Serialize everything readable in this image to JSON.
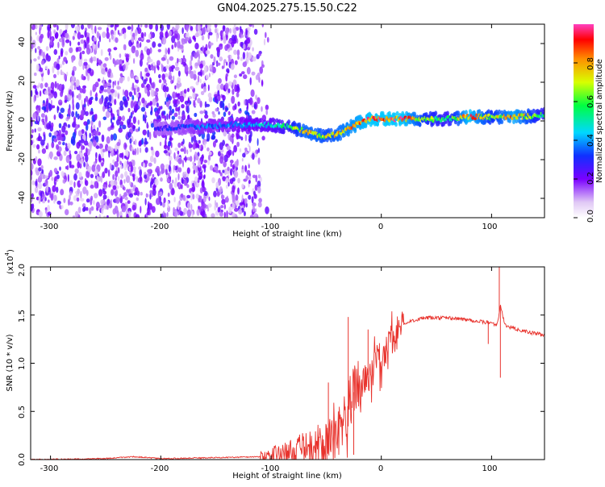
{
  "title": "GN04.2025.275.15.50.C22",
  "top_panel": {
    "ylabel": "Frequency (Hz)",
    "xlabel": "Height of straight line (km)",
    "colorbar_label": "Normalized spectral amplitude",
    "xticks": [
      "-300",
      "-200",
      "-100",
      "0",
      "100"
    ],
    "yticks": [
      "-40",
      "-20",
      "0",
      "20",
      "40"
    ],
    "cticks": [
      "0.0",
      "0.2",
      "0.4",
      "0.6",
      "0.8"
    ]
  },
  "bottom_panel": {
    "ylabel": "SNR (10 * v/v)",
    "xlabel": "Height of straight line (km)",
    "multiplier_base": "(x10",
    "multiplier_exp": "4",
    "multiplier_close": ")",
    "xticks": [
      "-300",
      "-200",
      "-100",
      "0",
      "100"
    ],
    "yticks": [
      "0.0",
      "0.5",
      "1.0",
      "1.5",
      "2.0"
    ]
  },
  "chart_data": [
    {
      "type": "heatmap",
      "title": "GN04.2025.275.15.50.C22",
      "xlabel": "Height of straight line (km)",
      "ylabel": "Frequency (Hz)",
      "xlim": [
        -318,
        148
      ],
      "ylim": [
        -50,
        50
      ],
      "clim": [
        0,
        1
      ],
      "colorbar_label": "Normalized spectral amplitude",
      "ridge": {
        "x": [
          -200,
          -180,
          -160,
          -140,
          -120,
          -100,
          -85,
          -70,
          -60,
          -50,
          -40,
          -30,
          -20,
          -10,
          0,
          20,
          40,
          60,
          80,
          100,
          120,
          148
        ],
        "freq": [
          -4,
          -3,
          -3,
          -2,
          -2,
          -2,
          -3,
          -5,
          -7,
          -8,
          -7,
          -4,
          -1,
          1,
          1,
          1,
          1,
          1,
          2,
          2,
          2,
          3
        ],
        "amplitude": [
          0.3,
          0.35,
          0.4,
          0.4,
          0.45,
          0.5,
          0.6,
          0.8,
          0.8,
          0.75,
          0.8,
          0.85,
          0.9,
          0.95,
          0.95,
          0.95,
          0.7,
          0.6,
          0.95,
          0.7,
          0.9,
          0.6
        ]
      }
    },
    {
      "type": "line",
      "xlabel": "Height of straight line (km)",
      "ylabel": "SNR (10 * v/v)",
      "y_multiplier": 10000,
      "xlim": [
        -318,
        148
      ],
      "ylim": [
        0,
        2.0
      ],
      "color": "#e8322c",
      "series": [
        {
          "name": "SNR",
          "x": [
            -318,
            -250,
            -225,
            -200,
            -150,
            -110,
            -100,
            -90,
            -80,
            -70,
            -60,
            -50,
            -40,
            -35,
            -30,
            -25,
            -20,
            -15,
            -10,
            -5,
            0,
            5,
            10,
            20,
            30,
            40,
            60,
            80,
            90,
            100,
            105,
            108,
            112,
            120,
            130,
            148
          ],
          "values": [
            0.0,
            0.01,
            0.03,
            0.01,
            0.02,
            0.03,
            0.05,
            0.06,
            0.08,
            0.12,
            0.1,
            0.15,
            0.25,
            0.4,
            0.55,
            0.7,
            0.75,
            0.85,
            0.9,
            1.0,
            1.05,
            1.15,
            1.25,
            1.4,
            1.45,
            1.47,
            1.47,
            1.45,
            1.43,
            1.42,
            1.4,
            1.6,
            1.4,
            1.36,
            1.33,
            1.29
          ]
        }
      ],
      "spikes": [
        {
          "x": -48,
          "value": 0.8
        },
        {
          "x": -30,
          "value": 1.48
        },
        {
          "x": -25,
          "value": 0.05
        },
        {
          "x": -12,
          "value": 1.35
        },
        {
          "x": 107,
          "value": 2.0
        },
        {
          "x": 108,
          "value": 0.85
        },
        {
          "x": 97,
          "value": 1.2
        }
      ]
    }
  ]
}
